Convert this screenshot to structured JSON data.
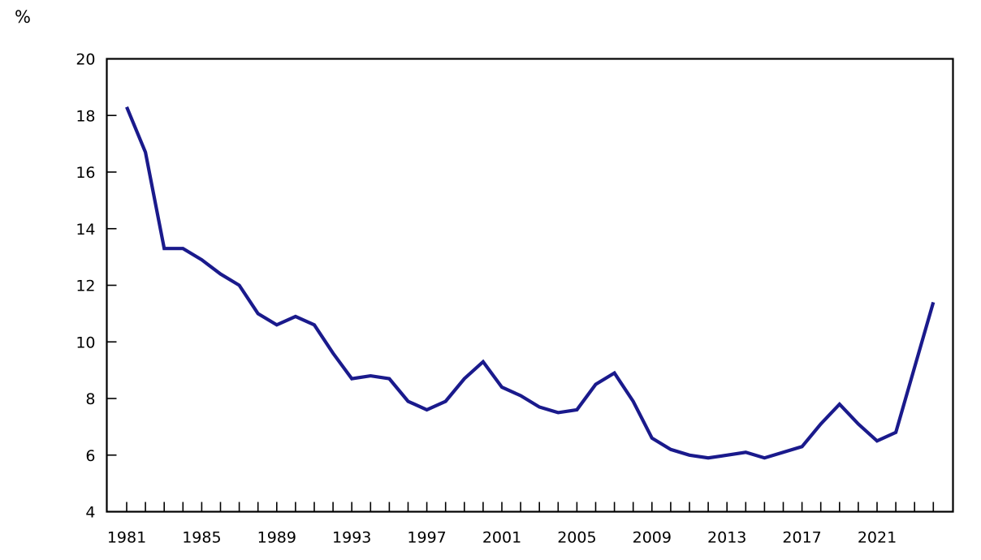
{
  "page": {
    "background_color": "#ffffff"
  },
  "chart_data": {
    "type": "line",
    "title": "",
    "xlabel": "",
    "ylabel": "%",
    "legend": "none",
    "grid": "off",
    "frame": "box",
    "line_color": "#1a1a8c",
    "axis_color": "#000000",
    "text_color": "#000000",
    "ylim": [
      4,
      20
    ],
    "xlim": [
      1981,
      2024
    ],
    "y_ticks": [
      20,
      18,
      16,
      14,
      12,
      10,
      8,
      6,
      4
    ],
    "x_tick_labels": [
      1981,
      1985,
      1989,
      1993,
      1997,
      2001,
      2005,
      2009,
      2013,
      2017,
      2021
    ],
    "x": [
      1981,
      1982,
      1983,
      1984,
      1985,
      1986,
      1987,
      1988,
      1989,
      1990,
      1991,
      1992,
      1993,
      1994,
      1995,
      1996,
      1997,
      1998,
      1999,
      2000,
      2001,
      2002,
      2003,
      2004,
      2005,
      2006,
      2007,
      2008,
      2009,
      2010,
      2011,
      2012,
      2013,
      2014,
      2015,
      2016,
      2017,
      2018,
      2019,
      2020,
      2021,
      2022,
      2023,
      2024
    ],
    "series": [
      {
        "name": "percent",
        "values": [
          18.3,
          16.7,
          13.3,
          13.3,
          12.9,
          12.4,
          12.0,
          11.0,
          10.6,
          10.9,
          10.6,
          9.6,
          8.7,
          8.8,
          8.7,
          7.9,
          7.6,
          7.9,
          8.7,
          9.3,
          8.4,
          8.1,
          7.7,
          7.5,
          7.6,
          8.5,
          8.9,
          7.9,
          6.6,
          6.2,
          6.0,
          5.9,
          6.0,
          6.1,
          5.9,
          6.1,
          6.3,
          7.1,
          7.8,
          7.1,
          6.5,
          6.8,
          9.1,
          11.4
        ]
      }
    ]
  }
}
